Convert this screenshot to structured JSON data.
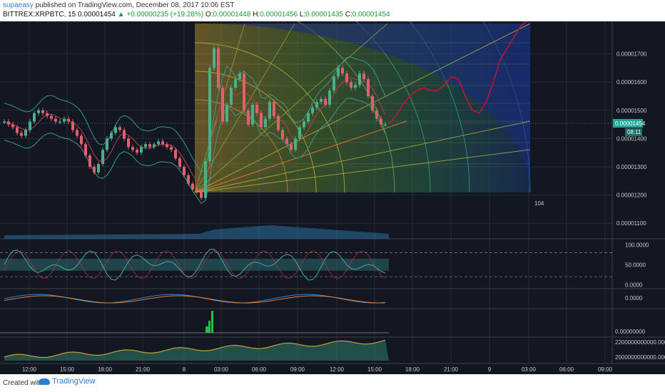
{
  "header": {
    "user": "supaeasy",
    "published": "published on TradingView.com, December 08, 2017 10:06 EST",
    "symbol": "BITTREX:XRPBTC, 15",
    "last": "0.00001454",
    "change": "+0.00000235 (+19.28%)",
    "o_label": "O:",
    "o": "0.00001448",
    "h_label": "H:",
    "h": "0.00001456",
    "l_label": "L:",
    "l": "0.00001435",
    "c_label": "C:",
    "c": "0.00001454"
  },
  "footer": {
    "created": "Created with",
    "brand": "TradingView"
  },
  "colors": {
    "bg": "#131722",
    "up": "#4caf8c",
    "down": "#e06070",
    "band": "#3a9a8a",
    "red_line": "#d01030",
    "price_tag": "#26a69a",
    "volume": "#2b6f9e"
  },
  "chart_data": [
    {
      "type": "line",
      "panel": "price",
      "symbol": "BITTREX:XRPBTC",
      "interval": "15",
      "y_ticks": [
        "0.00001700",
        "0.00001600",
        "0.00001500",
        "0.00001400",
        "0.00001300",
        "0.00001200",
        "0.00001100"
      ],
      "ylim": [
        1.045e-05,
        1.815e-05
      ],
      "x_ticks": [
        "12:00",
        "15:00",
        "18:00",
        "21:00",
        "8",
        "03:00",
        "06:00",
        "09:00",
        "12:00",
        "15:00",
        "18:00",
        "21:00",
        "9",
        "03:00",
        "06:00",
        "09:00"
      ],
      "last_price": "0.00001454",
      "countdown": "08:11",
      "fib_label": "104",
      "series": [
        {
          "values": [
            1.46e-05,
            1.45e-05,
            1.44e-05,
            1.42e-05,
            1.41e-05,
            1.43e-05,
            1.46e-05,
            1.49e-05,
            1.5e-05,
            1.49e-05,
            1.48e-05,
            1.47e-05,
            1.46e-05,
            1.46e-05,
            1.47e-05,
            1.46e-05,
            1.43e-05,
            1.41e-05,
            1.38e-05,
            1.34e-05,
            1.3e-05,
            1.28e-05,
            1.31e-05,
            1.36e-05,
            1.4e-05,
            1.42e-05,
            1.44e-05,
            1.43e-05,
            1.4e-05,
            1.37e-05,
            1.36e-05,
            1.35e-05,
            1.37e-05,
            1.38e-05,
            1.37e-05,
            1.38e-05,
            1.39e-05,
            1.38e-05,
            1.37e-05,
            1.36e-05,
            1.33e-05,
            1.3e-05,
            1.27e-05,
            1.24e-05,
            1.22e-05,
            1.21e-05,
            1.19e-05,
            1.32e-05,
            1.65e-05,
            1.72e-05,
            1.58e-05,
            1.46e-05,
            1.52e-05,
            1.58e-05,
            1.61e-05,
            1.63e-05,
            1.5e-05,
            1.45e-05,
            1.52e-05,
            1.49e-05,
            1.44e-05,
            1.47e-05,
            1.53e-05,
            1.48e-05,
            1.43e-05,
            1.4e-05,
            1.38e-05,
            1.36e-05,
            1.4e-05,
            1.44e-05,
            1.46e-05,
            1.49e-05,
            1.51e-05,
            1.53e-05,
            1.54e-05,
            1.52e-05,
            1.57e-05,
            1.62e-05,
            1.65e-05,
            1.63e-05,
            1.6e-05,
            1.58e-05,
            1.59e-05,
            1.63e-05,
            1.61e-05,
            1.55e-05,
            1.5e-05,
            1.47e-05,
            1.45e-05,
            1.45e-05
          ]
        },
        {
          "name": "forecast",
          "values": [
            1.45e-05,
            1.48e-05,
            1.52e-05,
            1.55e-05,
            1.57e-05,
            1.58e-05,
            1.57e-05,
            1.57e-05,
            1.59e-05,
            1.62e-05,
            1.61e-05,
            1.55e-05,
            1.5e-05,
            1.49e-05,
            1.53e-05,
            1.6e-05,
            1.68e-05,
            1.72e-05,
            1.76e-05,
            1.8e-05,
            1.82e-05
          ]
        }
      ]
    },
    {
      "type": "line",
      "panel": "oscillator",
      "y_ticks": [
        "100.0000",
        "50.0000",
        "0.0000"
      ],
      "ylim": [
        -10,
        115
      ]
    },
    {
      "type": "line",
      "panel": "macd",
      "y_ticks": [
        "0.0000"
      ]
    },
    {
      "type": "bar",
      "panel": "volume-delta",
      "y_ticks": [
        "0.00000000"
      ]
    },
    {
      "type": "area",
      "panel": "accumulation",
      "y_ticks": [
        "2200000000000.0000",
        "2000000000000.0000"
      ]
    }
  ]
}
